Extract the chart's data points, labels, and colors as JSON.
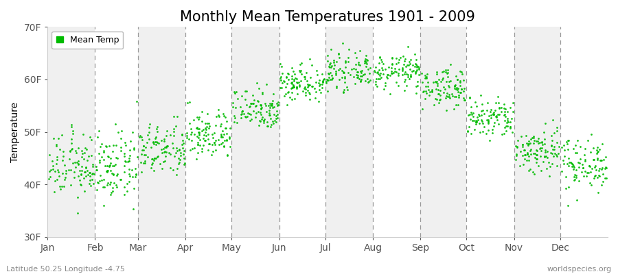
{
  "title": "Monthly Mean Temperatures 1901 - 2009",
  "ylabel": "Temperature",
  "ylim": [
    30,
    70
  ],
  "yticks": [
    30,
    40,
    50,
    60,
    70
  ],
  "ytick_labels": [
    "30F",
    "40F",
    "50F",
    "60F",
    "70F"
  ],
  "months": [
    "Jan",
    "Feb",
    "Mar",
    "Apr",
    "May",
    "Jun",
    "Jul",
    "Aug",
    "Sep",
    "Oct",
    "Nov",
    "Dec"
  ],
  "month_starts": [
    0,
    31,
    59,
    90,
    120,
    151,
    181,
    212,
    243,
    273,
    304,
    334
  ],
  "month_ends": [
    31,
    59,
    90,
    120,
    151,
    181,
    212,
    243,
    273,
    304,
    334,
    365
  ],
  "dot_color": "#00bb00",
  "background_colors": [
    "#f0f0f0",
    "#ffffff"
  ],
  "title_fontsize": 15,
  "label_fontsize": 10,
  "footer_left": "Latitude 50.25 Longitude -4.75",
  "footer_right": "worldspecies.org",
  "legend_label": "Mean Temp",
  "num_years": 109,
  "monthly_mean_F": [
    43.5,
    43.2,
    46.5,
    49.5,
    54.5,
    59.5,
    61.5,
    61.5,
    58.5,
    52.5,
    46.5,
    44.0
  ],
  "monthly_std_F": [
    3.0,
    3.2,
    2.5,
    2.3,
    2.0,
    1.8,
    1.6,
    1.6,
    1.8,
    2.0,
    2.3,
    2.5
  ]
}
